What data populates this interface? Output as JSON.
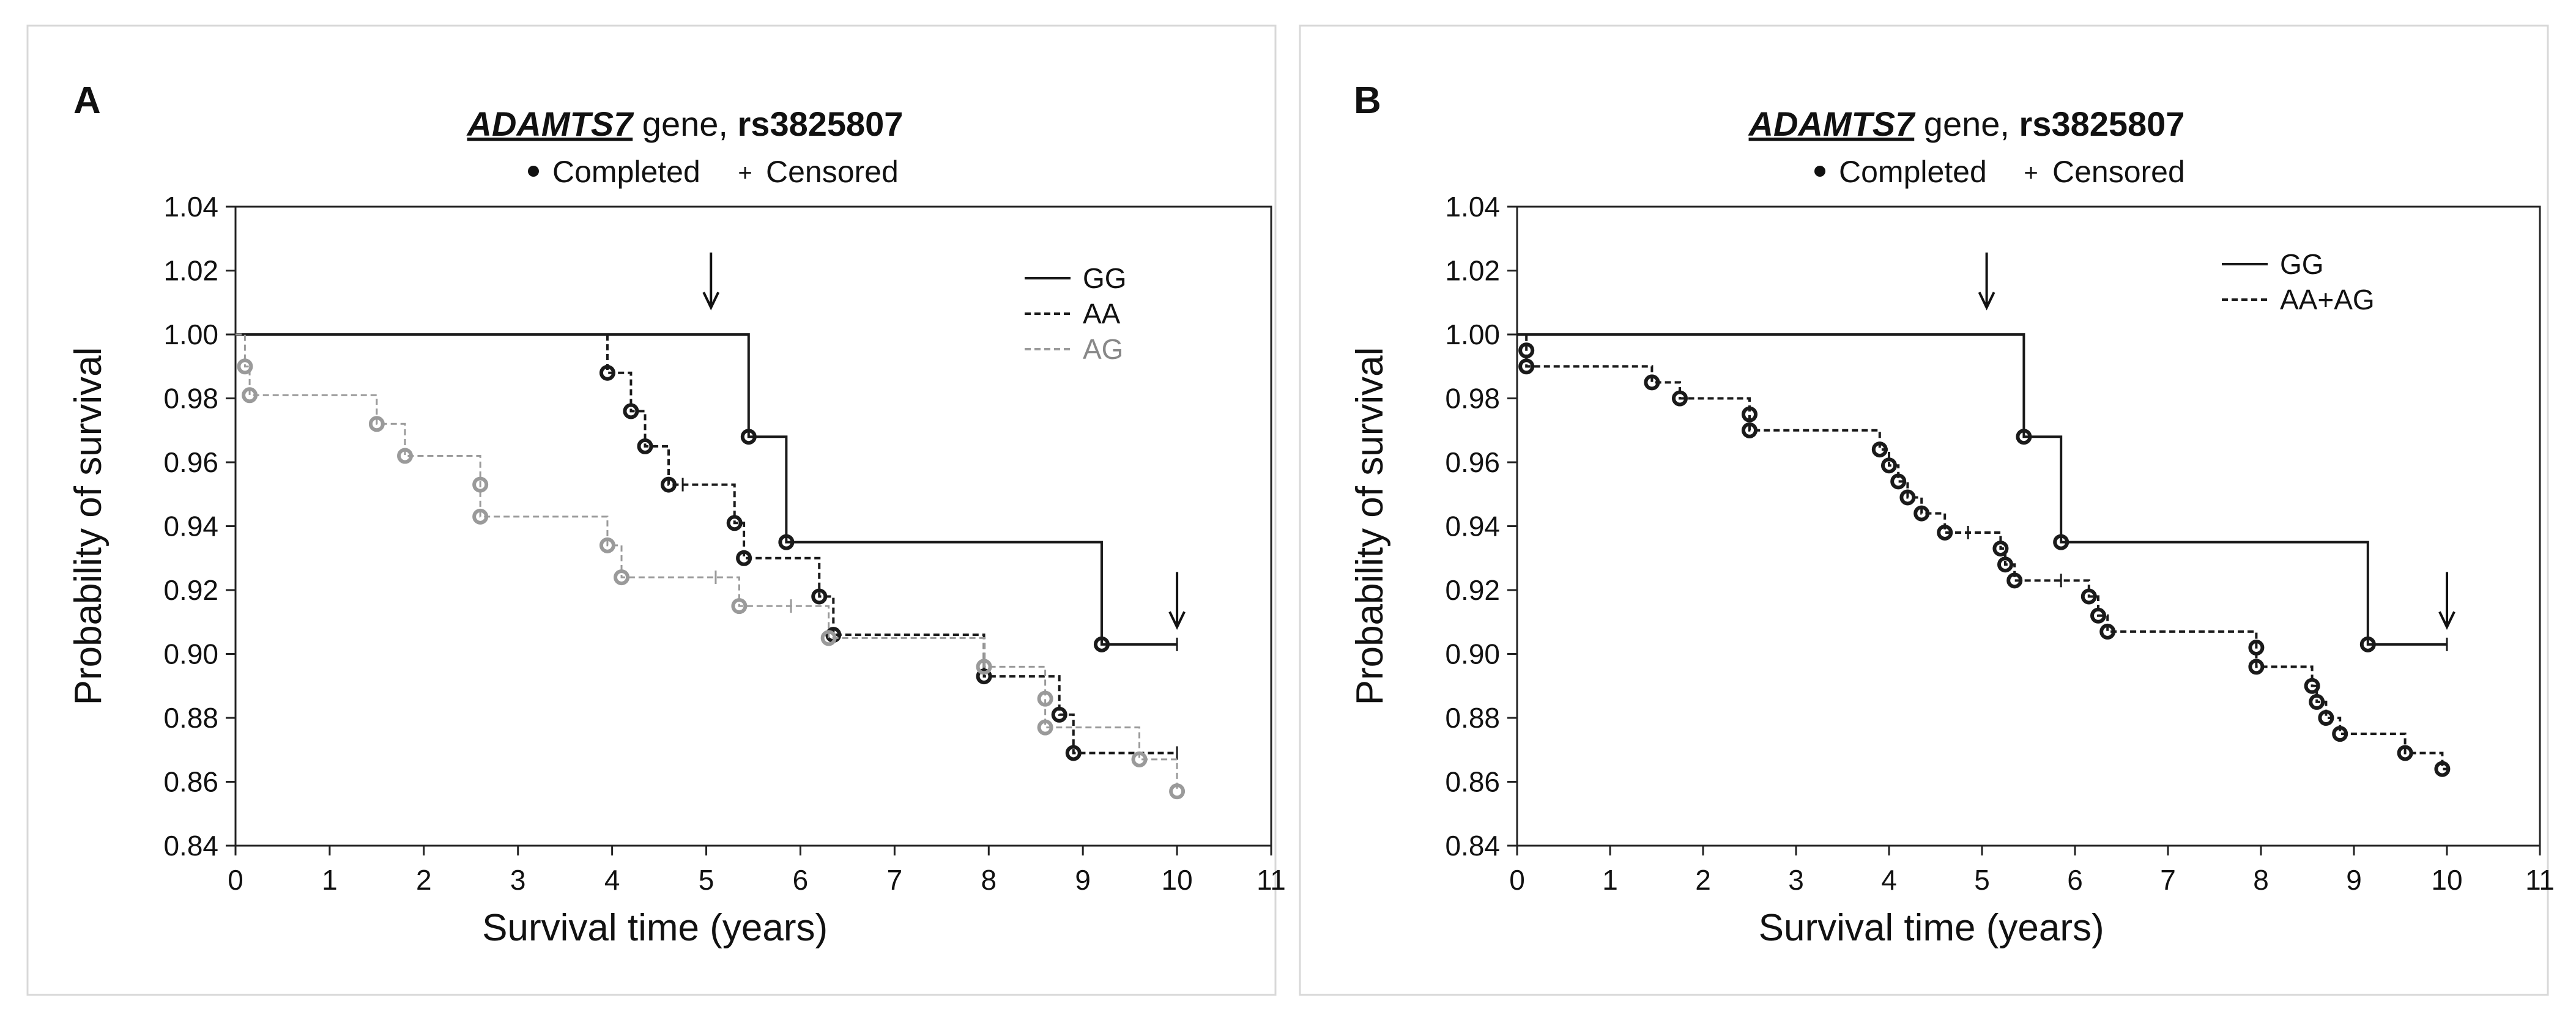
{
  "panels": [
    {
      "letter": "A",
      "title_gene": "ADAMTS7",
      "title_mid": " gene, ",
      "title_snp": "rs3825807",
      "legend_completed": "Completed",
      "legend_censored": "Censored"
    },
    {
      "letter": "B",
      "title_gene": "ADAMTS7",
      "title_mid": " gene, ",
      "title_snp": "rs3825807",
      "legend_completed": "Completed",
      "legend_censored": "Censored"
    }
  ],
  "colors": {
    "dark": "#1a1a1a",
    "light": "#9a9a9a"
  },
  "chart_data": [
    {
      "type": "line",
      "subtype": "kaplan-meier step",
      "xlabel": "Survival time (years)",
      "ylabel": "Probability of survival",
      "xlim": [
        0,
        11
      ],
      "ylim": [
        0.84,
        1.04
      ],
      "xticks": [
        "0",
        "1",
        "2",
        "3",
        "4",
        "5",
        "6",
        "7",
        "8",
        "9",
        "10",
        "11"
      ],
      "yticks": [
        "0.84",
        "0.86",
        "0.88",
        "0.90",
        "0.92",
        "0.94",
        "0.96",
        "0.98",
        "1.00",
        "1.02",
        "1.04"
      ],
      "legend_position": "top-right",
      "annotations": [
        {
          "type": "arrow",
          "x": 5.05,
          "y": 1.018
        },
        {
          "type": "arrow",
          "x": 10.0,
          "y": 0.918
        }
      ],
      "series": [
        {
          "name": "GG",
          "style": "solid",
          "color": "#1a1a1a",
          "steps": [
            [
              0,
              1.0
            ],
            [
              5.45,
              0.968
            ],
            [
              5.85,
              0.935
            ],
            [
              9.2,
              0.903
            ]
          ],
          "end": 10.0,
          "events": [
            [
              5.45,
              0.968
            ],
            [
              5.85,
              0.935
            ],
            [
              9.2,
              0.903
            ]
          ],
          "censored": [
            [
              10.0,
              0.903
            ]
          ]
        },
        {
          "name": "AA",
          "style": "dashed",
          "color": "#1a1a1a",
          "steps": [
            [
              3.95,
              1.0
            ],
            [
              3.95,
              0.988
            ],
            [
              4.2,
              0.976
            ],
            [
              4.35,
              0.965
            ],
            [
              4.6,
              0.953
            ],
            [
              5.3,
              0.941
            ],
            [
              5.4,
              0.93
            ],
            [
              6.2,
              0.918
            ],
            [
              6.35,
              0.906
            ],
            [
              7.95,
              0.893
            ],
            [
              8.75,
              0.881
            ],
            [
              8.9,
              0.869
            ]
          ],
          "end": 10.0,
          "events": [
            [
              3.95,
              0.988
            ],
            [
              4.2,
              0.976
            ],
            [
              4.35,
              0.965
            ],
            [
              4.6,
              0.953
            ],
            [
              5.3,
              0.941
            ],
            [
              5.4,
              0.93
            ],
            [
              6.2,
              0.918
            ],
            [
              6.35,
              0.906
            ],
            [
              7.95,
              0.893
            ],
            [
              8.75,
              0.881
            ],
            [
              8.9,
              0.869
            ]
          ],
          "censored": [
            [
              4.75,
              0.953
            ],
            [
              10.0,
              0.869
            ]
          ]
        },
        {
          "name": "AG",
          "style": "dashed",
          "color": "#9a9a9a",
          "steps": [
            [
              0,
              1.0
            ],
            [
              0.1,
              0.99
            ],
            [
              0.15,
              0.981
            ],
            [
              1.5,
              0.972
            ],
            [
              1.8,
              0.962
            ],
            [
              2.6,
              0.953
            ],
            [
              2.6,
              0.943
            ],
            [
              3.95,
              0.934
            ],
            [
              4.1,
              0.924
            ],
            [
              5.35,
              0.915
            ],
            [
              6.3,
              0.905
            ],
            [
              7.95,
              0.896
            ],
            [
              8.6,
              0.886
            ],
            [
              8.6,
              0.877
            ],
            [
              9.6,
              0.867
            ],
            [
              10.0,
              0.857
            ]
          ],
          "end": 10.0,
          "events": [
            [
              0.1,
              0.99
            ],
            [
              0.15,
              0.981
            ],
            [
              1.5,
              0.972
            ],
            [
              1.8,
              0.962
            ],
            [
              2.6,
              0.953
            ],
            [
              2.6,
              0.943
            ],
            [
              3.95,
              0.934
            ],
            [
              4.1,
              0.924
            ],
            [
              5.35,
              0.915
            ],
            [
              6.3,
              0.905
            ],
            [
              7.95,
              0.896
            ],
            [
              8.6,
              0.886
            ],
            [
              8.6,
              0.877
            ],
            [
              9.6,
              0.867
            ],
            [
              10.0,
              0.857
            ]
          ],
          "censored": [
            [
              5.1,
              0.924
            ],
            [
              5.9,
              0.915
            ]
          ]
        }
      ]
    },
    {
      "type": "line",
      "subtype": "kaplan-meier step",
      "xlabel": "Survival time (years)",
      "ylabel": "Probability of survival",
      "xlim": [
        0,
        11
      ],
      "ylim": [
        0.84,
        1.04
      ],
      "xticks": [
        "0",
        "1",
        "2",
        "3",
        "4",
        "5",
        "6",
        "7",
        "8",
        "9",
        "10",
        "11"
      ],
      "yticks": [
        "0.84",
        "0.86",
        "0.88",
        "0.90",
        "0.92",
        "0.94",
        "0.96",
        "0.98",
        "1.00",
        "1.02",
        "1.04"
      ],
      "legend_position": "top-right",
      "annotations": [
        {
          "type": "arrow",
          "x": 5.05,
          "y": 1.018
        },
        {
          "type": "arrow",
          "x": 10.0,
          "y": 0.918
        }
      ],
      "series": [
        {
          "name": "GG",
          "style": "solid",
          "color": "#1a1a1a",
          "steps": [
            [
              0,
              1.0
            ],
            [
              5.45,
              0.968
            ],
            [
              5.85,
              0.935
            ],
            [
              9.15,
              0.903
            ]
          ],
          "end": 10.0,
          "events": [
            [
              5.45,
              0.968
            ],
            [
              5.85,
              0.935
            ],
            [
              9.15,
              0.903
            ]
          ],
          "censored": [
            [
              10.0,
              0.903
            ]
          ]
        },
        {
          "name": "AA+AG",
          "style": "dashed",
          "color": "#1a1a1a",
          "steps": [
            [
              0,
              1.0
            ],
            [
              0.1,
              0.995
            ],
            [
              0.1,
              0.99
            ],
            [
              1.45,
              0.985
            ],
            [
              1.75,
              0.98
            ],
            [
              2.5,
              0.975
            ],
            [
              2.5,
              0.97
            ],
            [
              3.9,
              0.964
            ],
            [
              4.0,
              0.959
            ],
            [
              4.1,
              0.954
            ],
            [
              4.2,
              0.949
            ],
            [
              4.35,
              0.944
            ],
            [
              4.6,
              0.938
            ],
            [
              5.2,
              0.933
            ],
            [
              5.25,
              0.928
            ],
            [
              5.35,
              0.923
            ],
            [
              6.15,
              0.918
            ],
            [
              6.25,
              0.912
            ],
            [
              6.35,
              0.907
            ],
            [
              7.95,
              0.902
            ],
            [
              7.95,
              0.896
            ],
            [
              8.55,
              0.89
            ],
            [
              8.6,
              0.885
            ],
            [
              8.7,
              0.88
            ],
            [
              8.85,
              0.875
            ],
            [
              9.55,
              0.869
            ],
            [
              9.95,
              0.864
            ]
          ],
          "end": 10.0,
          "events": [
            [
              0.1,
              0.995
            ],
            [
              0.1,
              0.99
            ],
            [
              1.45,
              0.985
            ],
            [
              1.75,
              0.98
            ],
            [
              2.5,
              0.975
            ],
            [
              2.5,
              0.97
            ],
            [
              3.9,
              0.964
            ],
            [
              4.0,
              0.959
            ],
            [
              4.1,
              0.954
            ],
            [
              4.2,
              0.949
            ],
            [
              4.35,
              0.944
            ],
            [
              4.6,
              0.938
            ],
            [
              5.2,
              0.933
            ],
            [
              5.25,
              0.928
            ],
            [
              5.35,
              0.923
            ],
            [
              6.15,
              0.918
            ],
            [
              6.25,
              0.912
            ],
            [
              6.35,
              0.907
            ],
            [
              7.95,
              0.902
            ],
            [
              7.95,
              0.896
            ],
            [
              8.55,
              0.89
            ],
            [
              8.6,
              0.885
            ],
            [
              8.7,
              0.88
            ],
            [
              8.85,
              0.875
            ],
            [
              9.55,
              0.869
            ],
            [
              9.95,
              0.864
            ]
          ],
          "censored": [
            [
              4.85,
              0.938
            ],
            [
              5.85,
              0.923
            ]
          ]
        }
      ]
    }
  ]
}
